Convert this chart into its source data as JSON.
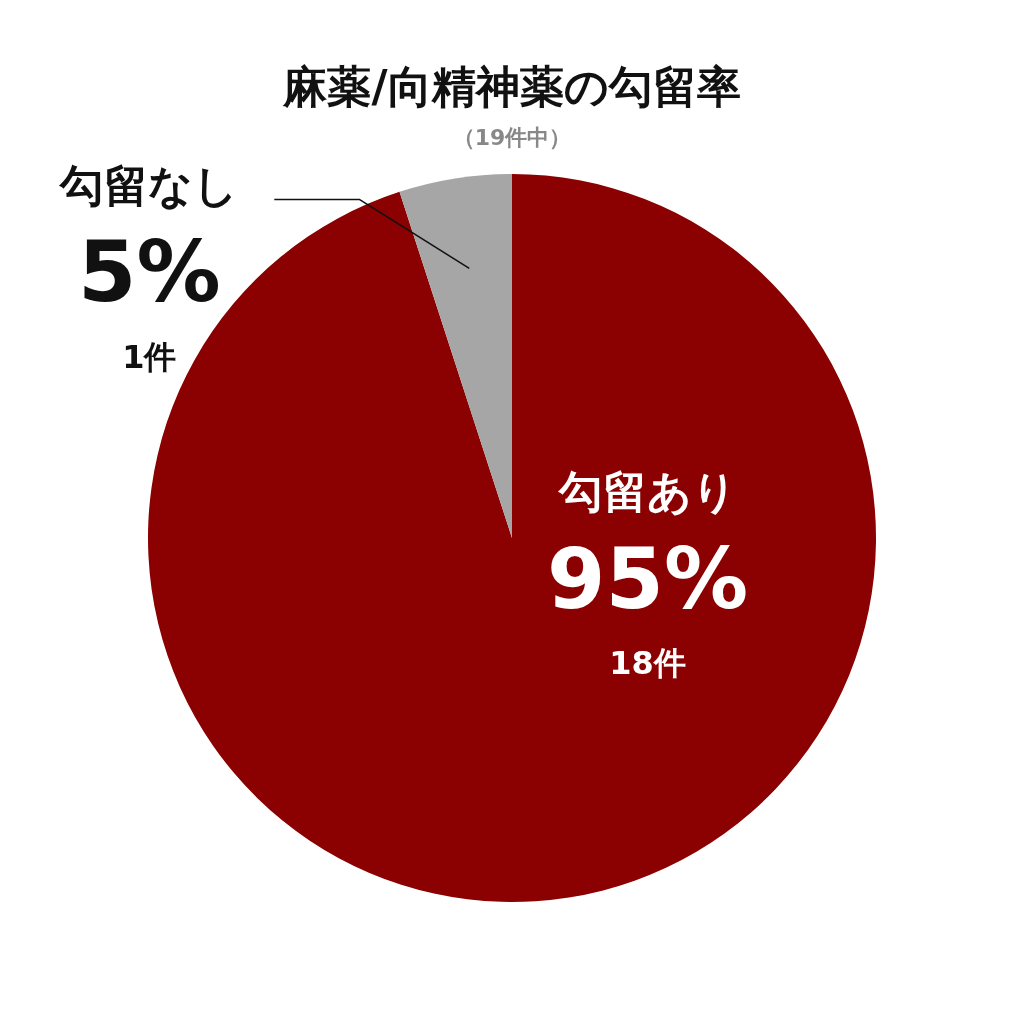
{
  "chart_data": {
    "type": "pie",
    "title": "麻薬/向精神薬の勾留率",
    "subtitle": "（19件中）",
    "categories": [
      "勾留あり",
      "勾留なし"
    ],
    "values": [
      95,
      5
    ],
    "colors": [
      "#8b0000",
      "#a6a6a6"
    ],
    "value_labels": [
      "95%",
      "5%"
    ],
    "annotations": [
      "18件",
      "1件"
    ],
    "legend": false
  }
}
